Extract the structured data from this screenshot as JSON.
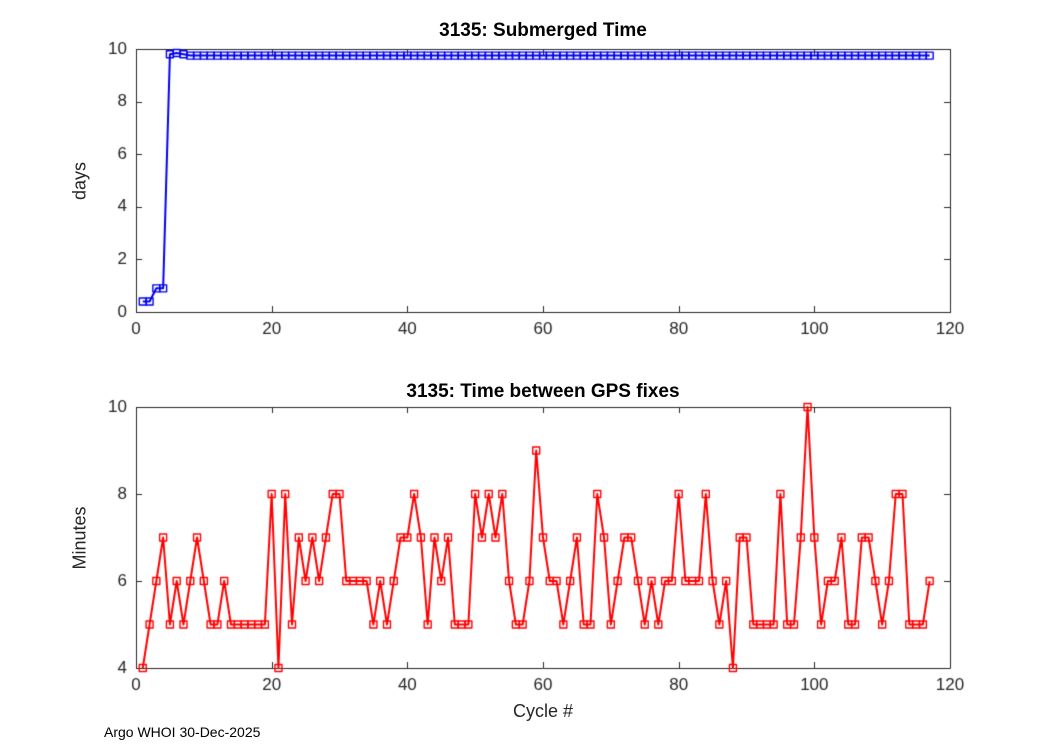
{
  "footer": {
    "text": "Argo WHOI 30-Dec-2025"
  },
  "chart_data": [
    {
      "type": "line",
      "title": "3135: Submerged Time",
      "xlabel": "",
      "ylabel": "days",
      "xlim": [
        0,
        120
      ],
      "ylim": [
        0,
        10
      ],
      "xticks": [
        0,
        20,
        40,
        60,
        80,
        100,
        120
      ],
      "yticks": [
        0,
        2,
        4,
        6,
        8,
        10
      ],
      "grid": false,
      "legend": "none",
      "color": "#0000ee",
      "marker": "open-square",
      "x_first": 1,
      "x_step": 1,
      "values": [
        0.4,
        0.4,
        0.9,
        0.9,
        9.8,
        9.85,
        9.8,
        9.75,
        9.75,
        9.75,
        9.75,
        9.75,
        9.75,
        9.75,
        9.75,
        9.75,
        9.75,
        9.75,
        9.75,
        9.75,
        9.75,
        9.75,
        9.75,
        9.75,
        9.75,
        9.75,
        9.75,
        9.75,
        9.75,
        9.75,
        9.75,
        9.75,
        9.75,
        9.75,
        9.75,
        9.75,
        9.75,
        9.75,
        9.75,
        9.75,
        9.75,
        9.75,
        9.75,
        9.75,
        9.75,
        9.75,
        9.75,
        9.75,
        9.75,
        9.75,
        9.75,
        9.75,
        9.75,
        9.75,
        9.75,
        9.75,
        9.75,
        9.75,
        9.75,
        9.75,
        9.75,
        9.75,
        9.75,
        9.75,
        9.75,
        9.75,
        9.75,
        9.75,
        9.75,
        9.75,
        9.75,
        9.75,
        9.75,
        9.75,
        9.75,
        9.75,
        9.75,
        9.75,
        9.75,
        9.75,
        9.75,
        9.75,
        9.75,
        9.75,
        9.75,
        9.75,
        9.75,
        9.75,
        9.75,
        9.75,
        9.75,
        9.75,
        9.75,
        9.75,
        9.75,
        9.75,
        9.75,
        9.75,
        9.75,
        9.75,
        9.75,
        9.75,
        9.75,
        9.75,
        9.75,
        9.75,
        9.75,
        9.75,
        9.75,
        9.75,
        9.75,
        9.75,
        9.75,
        9.75,
        9.75,
        9.75,
        9.75
      ]
    },
    {
      "type": "line",
      "title": "3135: Time between GPS fixes",
      "xlabel": "Cycle #",
      "ylabel": "Minutes",
      "xlim": [
        0,
        120
      ],
      "ylim": [
        4,
        10
      ],
      "xticks": [
        0,
        20,
        40,
        60,
        80,
        100,
        120
      ],
      "yticks": [
        4,
        6,
        8,
        10
      ],
      "grid": false,
      "legend": "none",
      "color": "#ff0000",
      "marker": "open-square",
      "x_first": 1,
      "x_step": 1,
      "values": [
        4,
        5,
        6,
        7,
        5,
        6,
        5,
        6,
        7,
        6,
        5,
        5,
        6,
        5,
        5,
        5,
        5,
        5,
        5,
        8,
        4,
        8,
        5,
        7,
        6,
        7,
        6,
        7,
        8,
        8,
        6,
        6,
        6,
        6,
        5,
        6,
        5,
        6,
        7,
        7,
        8,
        7,
        5,
        7,
        6,
        7,
        5,
        5,
        5,
        8,
        7,
        8,
        7,
        8,
        6,
        5,
        5,
        6,
        9,
        7,
        6,
        6,
        5,
        6,
        7,
        5,
        5,
        8,
        7,
        5,
        6,
        7,
        7,
        6,
        5,
        6,
        5,
        6,
        6,
        8,
        6,
        6,
        6,
        8,
        6,
        5,
        6,
        4,
        7,
        7,
        5,
        5,
        5,
        5,
        8,
        5,
        5,
        7,
        10,
        7,
        5,
        6,
        6,
        7,
        5,
        5,
        7,
        7,
        6,
        5,
        6,
        8,
        8,
        5,
        5,
        5,
        6
      ]
    }
  ]
}
